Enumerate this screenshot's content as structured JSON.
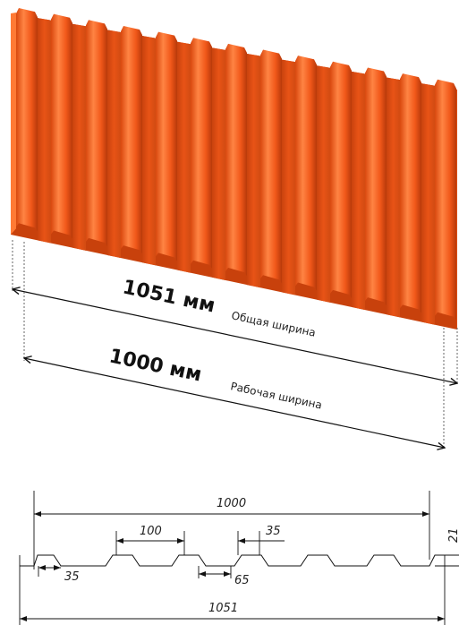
{
  "sheet": {
    "color": "#f15a1b",
    "color_light": "#ff7a35",
    "color_dark": "#c8410c",
    "color_shadow": "#a53408"
  },
  "overall_width": {
    "value": "1051 мм",
    "label": "Общая ширина"
  },
  "working_width": {
    "value": "1000 мм",
    "label": "Рабочая ширина"
  },
  "drawing": {
    "dim_top": "1000",
    "dim_pitch": "100",
    "dim_crest": "35",
    "dim_height": "21",
    "dim_bottom_left": "35",
    "dim_valley": "65",
    "dim_total": "1051"
  }
}
